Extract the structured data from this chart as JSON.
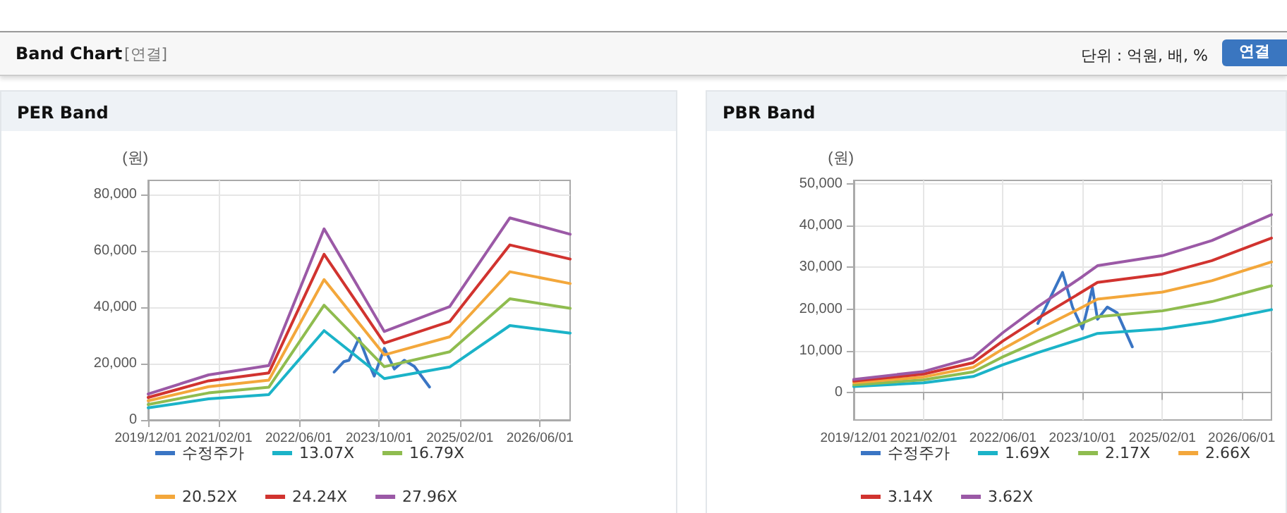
{
  "chart_data": [
    {
      "type": "other",
      "title": "Band Chart",
      "subtitle": "[연결]",
      "annotations": [
        "단위 : 억원, 배, %",
        "연결"
      ]
    },
    {
      "type": "line",
      "title": "PER Band",
      "ylabel": "(원)",
      "xlim": [
        "2019-12-01",
        "2026-12-01"
      ],
      "xticks": [
        {
          "value": "2019-12-01",
          "label": "2019/12/01"
        },
        {
          "value": "2021-02-01",
          "label": "2021/02/01"
        },
        {
          "value": "2022-06-01",
          "label": "2022/06/01"
        },
        {
          "value": "2023-10-01",
          "label": "2023/10/01"
        },
        {
          "value": "2025-02-01",
          "label": "2025/02/01"
        },
        {
          "value": "2026-06-01",
          "label": "2026/06/01"
        }
      ],
      "ylim": [
        0,
        85000
      ],
      "yticks": [
        {
          "value": 0,
          "label": "0"
        },
        {
          "value": 20000,
          "label": "20,000"
        },
        {
          "value": 40000,
          "label": "40,000"
        },
        {
          "value": 60000,
          "label": "60,000"
        },
        {
          "value": 80000,
          "label": "80,000"
        }
      ],
      "grid": true,
      "legend": "bottom",
      "marker": "none",
      "line_style": "solid",
      "series": [
        {
          "name": "수정주가",
          "color": "#3a75c4",
          "x": [
            "2023-01",
            "2023-03",
            "2023-04",
            "2023-06",
            "2023-08",
            "2023-09",
            "2023-11",
            "2024-01",
            "2024-03",
            "2024-05",
            "2024-08"
          ],
          "values": [
            17000,
            20700,
            21200,
            29000,
            19800,
            15600,
            25400,
            18100,
            21200,
            19000,
            11700
          ]
        },
        {
          "name": "13.07X",
          "color": "#1bb3c8",
          "x": [
            "2019-12",
            "2020-12",
            "2021-12",
            "2022-11",
            "2023-11",
            "2024-12",
            "2025-12",
            "2026-12"
          ],
          "values": [
            4300,
            7500,
            9000,
            31700,
            14700,
            18800,
            33500,
            30800
          ]
        },
        {
          "name": "16.79X",
          "color": "#8fbc4f",
          "x": [
            "2019-12",
            "2020-12",
            "2021-12",
            "2022-11",
            "2023-11",
            "2024-12",
            "2025-12",
            "2026-12"
          ],
          "values": [
            5500,
            9600,
            11600,
            40700,
            18900,
            24200,
            43000,
            39600
          ]
        },
        {
          "name": "20.52X",
          "color": "#f3a73b",
          "x": [
            "2019-12",
            "2020-12",
            "2021-12",
            "2022-11",
            "2023-11",
            "2024-12",
            "2025-12",
            "2026-12"
          ],
          "values": [
            6800,
            11800,
            14100,
            49800,
            23100,
            29500,
            52600,
            48400
          ]
        },
        {
          "name": "24.24X",
          "color": "#d1332f",
          "x": [
            "2019-12",
            "2020-12",
            "2021-12",
            "2022-11",
            "2023-11",
            "2024-12",
            "2025-12",
            "2026-12"
          ],
          "values": [
            8000,
            13900,
            16700,
            58800,
            27300,
            34900,
            62100,
            57100
          ]
        },
        {
          "name": "27.96X",
          "color": "#9b59a6",
          "x": [
            "2019-12",
            "2020-12",
            "2021-12",
            "2022-11",
            "2023-11",
            "2024-12",
            "2025-12",
            "2026-12"
          ],
          "values": [
            9200,
            16000,
            19300,
            67800,
            31400,
            40200,
            71700,
            65900
          ]
        }
      ]
    },
    {
      "type": "line",
      "title": "PBR Band",
      "ylabel": "(원)",
      "xlim": [
        "2019-12-01",
        "2026-12-01"
      ],
      "xticks": [
        {
          "value": "2019-12-01",
          "label": "2019/12/01"
        },
        {
          "value": "2021-02-01",
          "label": "2021/02/01"
        },
        {
          "value": "2022-06-01",
          "label": "2022/06/01"
        },
        {
          "value": "2023-10-01",
          "label": "2023/10/01"
        },
        {
          "value": "2025-02-01",
          "label": "2025/02/01"
        },
        {
          "value": "2026-06-01",
          "label": "2026/06/01"
        }
      ],
      "ylim": [
        -6500,
        50800
      ],
      "yticks": [
        {
          "value": 0,
          "label": "0"
        },
        {
          "value": 10000,
          "label": "10,000"
        },
        {
          "value": 20000,
          "label": "20,000"
        },
        {
          "value": 30000,
          "label": "30,000"
        },
        {
          "value": 40000,
          "label": "40,000"
        },
        {
          "value": 50000,
          "label": "50,000"
        }
      ],
      "grid": true,
      "legend": "bottom",
      "marker": "none",
      "line_style": "solid",
      "series": [
        {
          "name": "수정주가",
          "color": "#3a75c4",
          "x": [
            "2023-01",
            "2023-06",
            "2023-08",
            "2023-10",
            "2023-12",
            "2024-01",
            "2024-03",
            "2024-05",
            "2024-08"
          ],
          "values": [
            16600,
            28800,
            20500,
            15300,
            25100,
            17600,
            20500,
            19100,
            11000
          ]
        },
        {
          "name": "1.69X",
          "color": "#1bb3c8",
          "x": [
            "2019-12",
            "2021-02",
            "2021-12",
            "2022-06",
            "2023-01",
            "2023-10",
            "2024-01",
            "2025-02",
            "2025-12",
            "2026-12"
          ],
          "values": [
            1500,
            2400,
            3900,
            6700,
            9600,
            13000,
            14200,
            15300,
            17000,
            19900
          ]
        },
        {
          "name": "2.17X",
          "color": "#8fbc4f",
          "x": [
            "2019-12",
            "2021-02",
            "2021-12",
            "2022-06",
            "2023-01",
            "2023-10",
            "2024-01",
            "2025-02",
            "2025-12",
            "2026-12"
          ],
          "values": [
            1900,
            3100,
            5000,
            8600,
            12300,
            16700,
            18200,
            19600,
            21800,
            25600
          ]
        },
        {
          "name": "2.66X",
          "color": "#f3a73b",
          "x": [
            "2019-12",
            "2021-02",
            "2021-12",
            "2022-06",
            "2023-01",
            "2023-10",
            "2024-01",
            "2025-02",
            "2025-12",
            "2026-12"
          ],
          "values": [
            2400,
            3800,
            6100,
            10500,
            15100,
            20500,
            22400,
            24100,
            26800,
            31300
          ]
        },
        {
          "name": "3.14X",
          "color": "#d1332f",
          "x": [
            "2019-12",
            "2021-02",
            "2021-12",
            "2022-06",
            "2023-01",
            "2023-10",
            "2024-01",
            "2025-02",
            "2025-12",
            "2026-12"
          ],
          "values": [
            2800,
            4500,
            7200,
            12400,
            17800,
            24200,
            26400,
            28400,
            31600,
            37000
          ]
        },
        {
          "name": "3.62X",
          "color": "#9b59a6",
          "x": [
            "2019-12",
            "2021-02",
            "2021-12",
            "2022-06",
            "2023-01",
            "2023-10",
            "2024-01",
            "2025-02",
            "2025-12",
            "2026-12"
          ],
          "values": [
            3200,
            5100,
            8400,
            14400,
            20600,
            27800,
            30400,
            32800,
            36400,
            42600
          ]
        }
      ]
    }
  ]
}
